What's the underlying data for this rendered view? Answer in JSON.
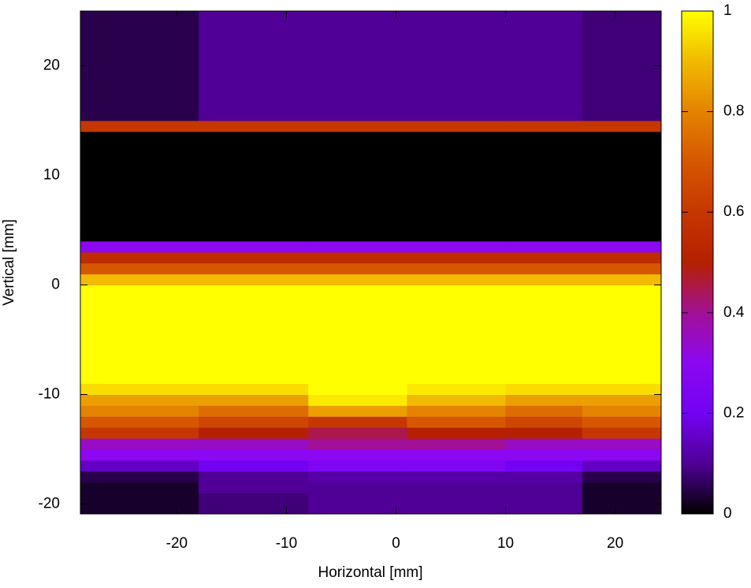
{
  "chart_data": {
    "type": "heatmap",
    "xlabel": "Horizontal [mm]",
    "ylabel": "Vertical [mm]",
    "xlim": [
      -28.8,
      24.2
    ],
    "ylim": [
      -20.9,
      25
    ],
    "xticks": [
      -20,
      -10,
      0,
      10,
      20
    ],
    "yticks": [
      -20,
      -10,
      0,
      10,
      20
    ],
    "clim": [
      0,
      1
    ],
    "cticks": [
      0,
      0.2,
      0.4,
      0.6,
      0.8,
      1
    ],
    "colormap": [
      "#000000",
      "#500096",
      "#7302f2",
      "#8c07f2",
      "#a11096",
      "#b52000",
      "#c63700",
      "#d65700",
      "#e48300",
      "#f2ba00",
      "#ffff00"
    ],
    "x_edges": [
      -28.8,
      -18,
      -8,
      1,
      10,
      17,
      24.2
    ],
    "y_edges": [
      -21,
      -20,
      -19,
      -18,
      -17,
      -16,
      -15,
      -14,
      -13,
      -12,
      -11,
      -10,
      -9,
      -8,
      -7,
      -6,
      -5,
      -4,
      -3,
      -2,
      -1,
      0,
      1,
      2,
      3,
      4,
      5,
      6,
      7,
      8,
      9,
      10,
      11,
      12,
      13,
      14,
      15,
      16,
      17,
      18,
      19,
      20,
      21,
      22,
      23,
      24,
      25
    ],
    "z": [
      [
        0.03,
        0.08,
        0.1,
        0.1,
        0.1,
        0.03
      ],
      [
        0.03,
        0.08,
        0.1,
        0.1,
        0.1,
        0.03
      ],
      [
        0.03,
        0.1,
        0.1,
        0.1,
        0.1,
        0.03
      ],
      [
        0.05,
        0.1,
        0.12,
        0.12,
        0.12,
        0.05
      ],
      [
        0.15,
        0.2,
        0.25,
        0.25,
        0.2,
        0.15
      ],
      [
        0.3,
        0.3,
        0.3,
        0.3,
        0.3,
        0.3
      ],
      [
        0.35,
        0.35,
        0.4,
        0.4,
        0.35,
        0.35
      ],
      [
        0.6,
        0.5,
        0.45,
        0.5,
        0.5,
        0.6
      ],
      [
        0.7,
        0.65,
        0.6,
        0.7,
        0.65,
        0.7
      ],
      [
        0.8,
        0.75,
        0.85,
        0.8,
        0.75,
        0.8
      ],
      [
        0.85,
        0.85,
        0.97,
        0.9,
        0.85,
        0.85
      ],
      [
        0.95,
        0.95,
        1,
        0.97,
        0.95,
        0.95
      ],
      [
        1,
        1,
        1,
        1,
        1,
        1
      ],
      [
        1,
        1,
        1,
        1,
        1,
        1
      ],
      [
        1,
        1,
        1,
        1,
        1,
        1
      ],
      [
        1,
        1,
        1,
        1,
        1,
        1
      ],
      [
        1,
        1,
        1,
        1,
        1,
        1
      ],
      [
        1,
        1,
        1,
        1,
        1,
        1
      ],
      [
        1,
        1,
        1,
        1,
        1,
        1
      ],
      [
        1,
        1,
        1,
        1,
        1,
        1
      ],
      [
        1,
        1,
        1,
        1,
        1,
        1
      ],
      [
        0.9,
        0.9,
        0.9,
        0.9,
        0.9,
        0.9
      ],
      [
        0.7,
        0.7,
        0.7,
        0.7,
        0.7,
        0.7
      ],
      [
        0.55,
        0.55,
        0.55,
        0.55,
        0.55,
        0.55
      ],
      [
        0.3,
        0.3,
        0.3,
        0.3,
        0.3,
        0.3
      ],
      [
        0,
        0,
        0,
        0,
        0,
        0
      ],
      [
        0,
        0,
        0,
        0,
        0,
        0
      ],
      [
        0,
        0,
        0,
        0,
        0,
        0
      ],
      [
        0,
        0,
        0,
        0,
        0,
        0
      ],
      [
        0,
        0,
        0,
        0,
        0,
        0
      ],
      [
        0,
        0,
        0,
        0,
        0,
        0
      ],
      [
        0,
        0,
        0,
        0,
        0,
        0
      ],
      [
        0,
        0,
        0,
        0,
        0,
        0
      ],
      [
        0,
        0,
        0,
        0,
        0,
        0
      ],
      [
        0,
        0,
        0,
        0,
        0,
        0
      ],
      [
        0.6,
        0.6,
        0.6,
        0.6,
        0.6,
        0.6
      ],
      [
        0.05,
        0.1,
        0.1,
        0.1,
        0.1,
        0.08
      ],
      [
        0.05,
        0.1,
        0.1,
        0.1,
        0.1,
        0.08
      ],
      [
        0.05,
        0.1,
        0.1,
        0.1,
        0.1,
        0.08
      ],
      [
        0.05,
        0.1,
        0.1,
        0.1,
        0.1,
        0.08
      ],
      [
        0.05,
        0.1,
        0.1,
        0.1,
        0.1,
        0.08
      ],
      [
        0.05,
        0.1,
        0.1,
        0.1,
        0.1,
        0.08
      ],
      [
        0.05,
        0.1,
        0.1,
        0.1,
        0.1,
        0.08
      ],
      [
        0.05,
        0.1,
        0.1,
        0.1,
        0.1,
        0.08
      ],
      [
        0.05,
        0.1,
        0.1,
        0.1,
        0.1,
        0.08
      ],
      [
        0.05,
        0.1,
        0.1,
        0.1,
        0.1,
        0.08
      ]
    ]
  }
}
